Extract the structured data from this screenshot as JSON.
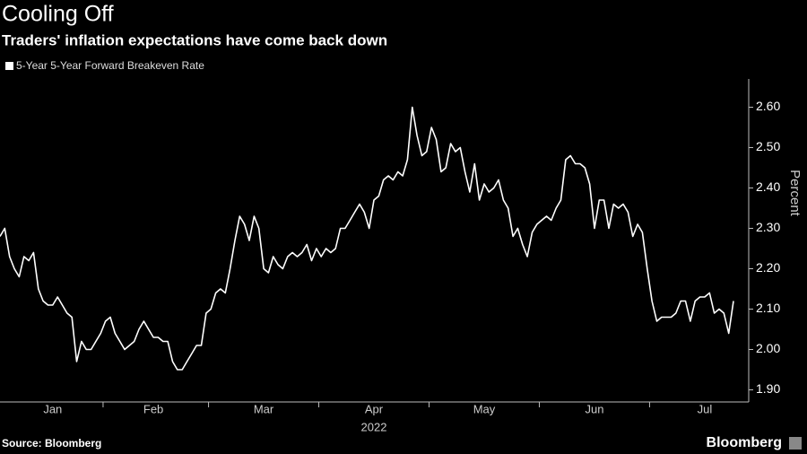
{
  "chart_data": {
    "type": "line",
    "title": "Cooling Off",
    "subtitle": "Traders' inflation expectations have come back down",
    "ylabel": "Percent",
    "xlabel": "2022",
    "source": "Source: Bloomberg",
    "brand": "Bloomberg",
    "categories": [
      null,
      null,
      null,
      null,
      null,
      null,
      null,
      null,
      null,
      null,
      null,
      "Jan",
      null,
      null,
      null,
      null,
      null,
      null,
      null,
      null,
      null,
      null,
      null,
      null,
      null,
      null,
      null,
      null,
      null,
      null,
      null,
      null,
      "Feb",
      null,
      null,
      null,
      null,
      null,
      null,
      null,
      null,
      null,
      null,
      null,
      null,
      null,
      null,
      null,
      null,
      null,
      null,
      null,
      null,
      null,
      null,
      "Mar",
      null,
      null,
      null,
      null,
      null,
      null,
      null,
      null,
      null,
      null,
      null,
      null,
      null,
      null,
      null,
      null,
      null,
      null,
      null,
      null,
      null,
      null,
      "Apr",
      null,
      null,
      null,
      null,
      null,
      null,
      null,
      null,
      null,
      null,
      null,
      null,
      null,
      null,
      null,
      null,
      null,
      null,
      null,
      null,
      null,
      null,
      "May",
      null,
      null,
      null,
      null,
      null,
      null,
      null,
      null,
      null,
      null,
      null,
      null,
      null,
      null,
      null,
      null,
      null,
      null,
      null,
      null,
      null,
      null,
      "Jun",
      null,
      null,
      null,
      null,
      null,
      null,
      null,
      null,
      null,
      null,
      null,
      null,
      null,
      null,
      null,
      null,
      null,
      null,
      null,
      null,
      null,
      null,
      "Jul",
      null,
      null,
      null,
      null,
      null,
      null
    ],
    "series": [
      {
        "name": "5-Year 5-Year Forward Breakeven Rate",
        "color": "#ffffff",
        "values": [
          2.28,
          2.3,
          2.23,
          2.2,
          2.18,
          2.23,
          2.22,
          2.24,
          2.15,
          2.12,
          2.11,
          2.11,
          2.13,
          2.11,
          2.09,
          2.08,
          1.97,
          2.02,
          2.0,
          2.0,
          2.02,
          2.04,
          2.07,
          2.08,
          2.04,
          2.02,
          2.0,
          2.01,
          2.02,
          2.05,
          2.07,
          2.05,
          2.03,
          2.03,
          2.02,
          2.02,
          1.97,
          1.95,
          1.95,
          1.97,
          1.99,
          2.01,
          2.01,
          2.09,
          2.1,
          2.14,
          2.15,
          2.14,
          2.2,
          2.27,
          2.33,
          2.31,
          2.27,
          2.33,
          2.3,
          2.2,
          2.19,
          2.23,
          2.21,
          2.2,
          2.23,
          2.24,
          2.23,
          2.24,
          2.26,
          2.22,
          2.25,
          2.23,
          2.25,
          2.24,
          2.25,
          2.3,
          2.3,
          2.32,
          2.34,
          2.36,
          2.34,
          2.3,
          2.37,
          2.38,
          2.42,
          2.43,
          2.42,
          2.44,
          2.43,
          2.47,
          2.6,
          2.53,
          2.48,
          2.49,
          2.55,
          2.52,
          2.44,
          2.45,
          2.51,
          2.49,
          2.5,
          2.44,
          2.39,
          2.46,
          2.37,
          2.41,
          2.39,
          2.4,
          2.42,
          2.37,
          2.35,
          2.28,
          2.3,
          2.26,
          2.23,
          2.29,
          2.31,
          2.32,
          2.33,
          2.32,
          2.35,
          2.37,
          2.47,
          2.48,
          2.46,
          2.46,
          2.45,
          2.41,
          2.3,
          2.37,
          2.37,
          2.3,
          2.36,
          2.35,
          2.36,
          2.34,
          2.28,
          2.31,
          2.29,
          2.2,
          2.12,
          2.07,
          2.08,
          2.08,
          2.08,
          2.09,
          2.12,
          2.12,
          2.07,
          2.12,
          2.13,
          2.13,
          2.14,
          2.09,
          2.1,
          2.09,
          2.04,
          2.12
        ]
      }
    ],
    "ylim": [
      1.87,
      2.67
    ],
    "yticks": [
      {
        "value": 1.9,
        "label": "1.90"
      },
      {
        "value": 2.0,
        "label": "2.00"
      },
      {
        "value": 2.1,
        "label": "2.10"
      },
      {
        "value": 2.2,
        "label": "2.20"
      },
      {
        "value": 2.3,
        "label": "2.30"
      },
      {
        "value": 2.4,
        "label": "2.40"
      },
      {
        "value": 2.5,
        "label": "2.50"
      },
      {
        "value": 2.6,
        "label": "2.60"
      }
    ],
    "grid": false
  }
}
